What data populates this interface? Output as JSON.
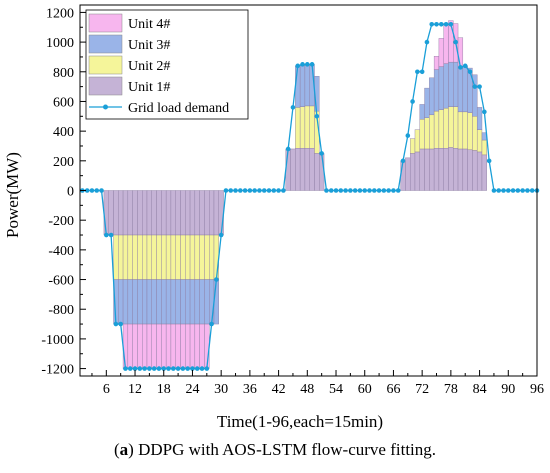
{
  "chart_data": {
    "type": "bar",
    "stacked": true,
    "ylabel": "Power(MW)",
    "xlabel": "Time(1-96,each=15min)",
    "xlim": [
      1,
      96
    ],
    "ylim": [
      -1250,
      1250
    ],
    "x_ticks": [
      6,
      12,
      18,
      24,
      30,
      36,
      42,
      48,
      54,
      60,
      66,
      72,
      78,
      84,
      90,
      96
    ],
    "y_ticks": [
      -1200,
      -1000,
      -800,
      -600,
      -400,
      -200,
      0,
      200,
      400,
      600,
      800,
      1000,
      1200
    ],
    "grid": false,
    "legend_position": "top-left",
    "x": [
      1,
      2,
      3,
      4,
      5,
      6,
      7,
      8,
      9,
      10,
      11,
      12,
      13,
      14,
      15,
      16,
      17,
      18,
      19,
      20,
      21,
      22,
      23,
      24,
      25,
      26,
      27,
      28,
      29,
      30,
      31,
      32,
      33,
      34,
      35,
      36,
      37,
      38,
      39,
      40,
      41,
      42,
      43,
      44,
      45,
      46,
      47,
      48,
      49,
      50,
      51,
      52,
      53,
      54,
      55,
      56,
      57,
      58,
      59,
      60,
      61,
      62,
      63,
      64,
      65,
      66,
      67,
      68,
      69,
      70,
      71,
      72,
      73,
      74,
      75,
      76,
      77,
      78,
      79,
      80,
      81,
      82,
      83,
      84,
      85,
      86,
      87,
      88,
      89,
      90,
      91,
      92,
      93,
      94,
      95,
      96
    ],
    "series": [
      {
        "name": "Unit 1#",
        "color": "#c5b3d6",
        "values": [
          0,
          0,
          0,
          0,
          0,
          -300,
          -300,
          -300,
          -300,
          -300,
          -300,
          -300,
          -300,
          -300,
          -300,
          -300,
          -300,
          -300,
          -300,
          -300,
          -300,
          -300,
          -300,
          -300,
          -300,
          -300,
          -300,
          -300,
          -300,
          -300,
          0,
          0,
          0,
          0,
          0,
          0,
          0,
          0,
          0,
          0,
          0,
          0,
          0,
          280,
          280,
          285,
          285,
          285,
          285,
          250,
          250,
          0,
          0,
          0,
          0,
          0,
          0,
          0,
          0,
          0,
          0,
          0,
          0,
          0,
          0,
          0,
          0,
          200,
          220,
          250,
          260,
          280,
          280,
          280,
          285,
          285,
          285,
          290,
          285,
          280,
          280,
          275,
          270,
          260,
          240,
          0,
          0,
          0,
          0,
          0,
          0,
          0,
          0,
          0,
          0,
          0
        ]
      },
      {
        "name": "Unit 2#",
        "color": "#f5f59a",
        "values": [
          0,
          0,
          0,
          0,
          0,
          0,
          0,
          -300,
          -300,
          -300,
          -300,
          -300,
          -300,
          -300,
          -300,
          -300,
          -300,
          -300,
          -300,
          -300,
          -300,
          -300,
          -300,
          -300,
          -300,
          -300,
          -300,
          -300,
          -300,
          0,
          0,
          0,
          0,
          0,
          0,
          0,
          0,
          0,
          0,
          0,
          0,
          0,
          0,
          0,
          0,
          275,
          280,
          285,
          285,
          285,
          0,
          0,
          0,
          0,
          0,
          0,
          0,
          0,
          0,
          0,
          0,
          0,
          0,
          0,
          0,
          0,
          0,
          0,
          0,
          100,
          150,
          200,
          210,
          230,
          250,
          260,
          270,
          275,
          280,
          250,
          250,
          250,
          230,
          150,
          100,
          0,
          0,
          0,
          0,
          0,
          0,
          0,
          0,
          0,
          0,
          0
        ]
      },
      {
        "name": "Unit 3#",
        "color": "#9ab4e8",
        "values": [
          0,
          0,
          0,
          0,
          0,
          0,
          0,
          -300,
          -300,
          -300,
          -300,
          -300,
          -300,
          -300,
          -300,
          -300,
          -300,
          -300,
          -300,
          -300,
          -300,
          -300,
          -300,
          -300,
          -300,
          -300,
          -300,
          -300,
          -300,
          0,
          0,
          0,
          0,
          0,
          0,
          0,
          0,
          0,
          0,
          0,
          0,
          0,
          0,
          0,
          0,
          280,
          280,
          280,
          280,
          235,
          0,
          0,
          0,
          0,
          0,
          0,
          0,
          0,
          0,
          0,
          0,
          0,
          0,
          0,
          0,
          0,
          0,
          0,
          0,
          0,
          0,
          100,
          200,
          250,
          280,
          290,
          300,
          300,
          300,
          300,
          310,
          300,
          280,
          150,
          50,
          0,
          0,
          0,
          0,
          0,
          0,
          0,
          0,
          0,
          0,
          0
        ]
      },
      {
        "name": "Unit 4#",
        "color": "#f7b6ee",
        "values": [
          0,
          0,
          0,
          0,
          0,
          0,
          0,
          0,
          0,
          -300,
          -300,
          -300,
          -300,
          -300,
          -300,
          -300,
          -300,
          -300,
          -300,
          -300,
          -300,
          -300,
          -300,
          -300,
          -300,
          -300,
          -300,
          0,
          0,
          0,
          0,
          0,
          0,
          0,
          0,
          0,
          0,
          0,
          0,
          0,
          0,
          0,
          0,
          0,
          0,
          0,
          0,
          0,
          0,
          0,
          0,
          0,
          0,
          0,
          0,
          0,
          0,
          0,
          0,
          0,
          0,
          0,
          0,
          0,
          0,
          0,
          0,
          0,
          0,
          0,
          0,
          0,
          0,
          0,
          90,
          190,
          270,
          280,
          260,
          200,
          0,
          0,
          0,
          0,
          0,
          0,
          0,
          0,
          0,
          0,
          0,
          0,
          0,
          0,
          0,
          0
        ]
      },
      {
        "name": "Grid load demand",
        "type": "line",
        "color": "#1a9fd8",
        "values": [
          0,
          0,
          0,
          0,
          0,
          -300,
          -300,
          -900,
          -900,
          -1200,
          -1200,
          -1200,
          -1200,
          -1200,
          -1200,
          -1200,
          -1200,
          -1200,
          -1200,
          -1200,
          -1200,
          -1200,
          -1200,
          -1200,
          -1200,
          -1200,
          -1200,
          -900,
          -600,
          -300,
          0,
          0,
          0,
          0,
          0,
          0,
          0,
          0,
          0,
          0,
          0,
          0,
          0,
          280,
          560,
          840,
          850,
          850,
          850,
          500,
          250,
          0,
          0,
          0,
          0,
          0,
          0,
          0,
          0,
          0,
          0,
          0,
          0,
          0,
          0,
          0,
          0,
          200,
          370,
          600,
          800,
          800,
          1000,
          1120,
          1120,
          1120,
          1120,
          1120,
          1000,
          830,
          840,
          800,
          700,
          700,
          530,
          200,
          0,
          0,
          0,
          0,
          0,
          0,
          0,
          0,
          0,
          0
        ]
      }
    ]
  },
  "caption": {
    "label": "(a)",
    "label_bold": "a",
    "text": " DDPG with AOS-LSTM flow-curve fitting."
  }
}
